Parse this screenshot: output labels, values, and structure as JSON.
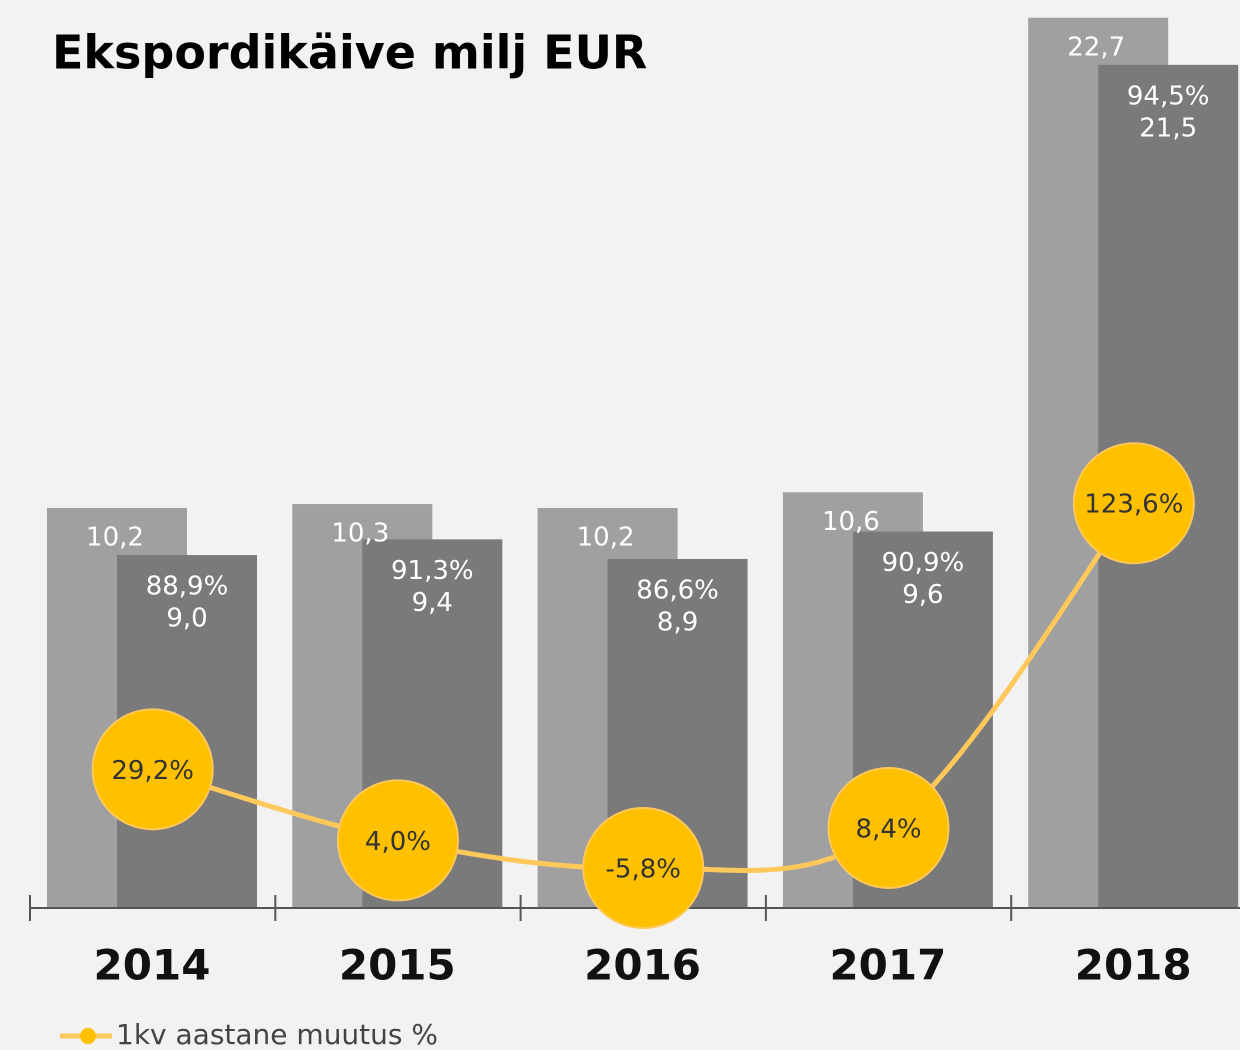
{
  "chart_data": {
    "type": "bar",
    "title": "Ekspordikäive milj EUR",
    "categories": [
      "2014",
      "2015",
      "2016",
      "2017",
      "2018"
    ],
    "series": [
      {
        "color": "#a0a0a0",
        "values": [
          10.2,
          10.3,
          10.2,
          10.6,
          22.7
        ],
        "value_labels": [
          "10,2",
          "10,3",
          "10,2",
          "10,6",
          "22,7"
        ]
      },
      {
        "color": "#7a7a7a",
        "values": [
          9.0,
          9.4,
          8.9,
          9.6,
          21.5
        ],
        "value_labels": [
          "9,0",
          "9,4",
          "8,9",
          "9,6",
          "21,5"
        ],
        "share_labels": [
          "88,9%",
          "91,3%",
          "86,6%",
          "90,9%",
          "94,5%"
        ]
      },
      {
        "type": "line",
        "name": "1kv aastane muutus %",
        "axis": "y2",
        "color": "#ffc85a",
        "marker_color": "#ffc000",
        "values": [
          29.2,
          4.0,
          -5.8,
          8.4,
          123.6
        ],
        "value_labels": [
          "29,2%",
          "4,0%",
          "-5,8%",
          "8,4%",
          "123,6%"
        ]
      }
    ],
    "ylim": [
      0,
      23
    ],
    "y2lim": [
      -20,
      300
    ]
  }
}
